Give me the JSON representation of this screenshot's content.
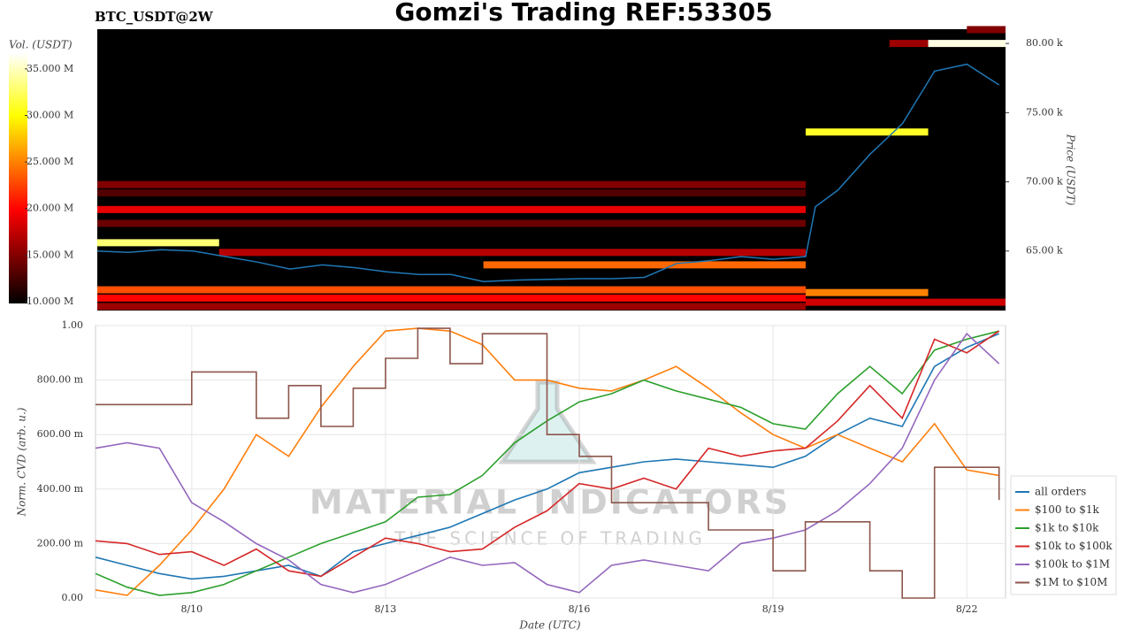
{
  "chart_data": [
    {
      "type": "heatmap",
      "title": "Gomzi's Trading REF:53305",
      "subtitle": "BTC_USDT@2W",
      "ylabel": "Price (USDT)",
      "colorbar_label": "Vol. (USDT)",
      "colormap": "hot",
      "xlim": [
        8.51,
        22.6
      ],
      "ylim": [
        60700,
        81030
      ],
      "yticks": [
        {
          "value": 65000,
          "label": "65.00 k"
        },
        {
          "value": 70000,
          "label": "70.00 k"
        },
        {
          "value": 75000,
          "label": "75.00 k"
        },
        {
          "value": 80000,
          "label": "80.00 k"
        }
      ],
      "clim": [
        9800000,
        36700000
      ],
      "cticks": [
        {
          "value": 10000000,
          "label": "10.000 M"
        },
        {
          "value": 15000000,
          "label": "15.000 M"
        },
        {
          "value": 20000000,
          "label": "20.000 M"
        },
        {
          "value": 25000000,
          "label": "25.000 M"
        },
        {
          "value": 30000000,
          "label": "30.000 M"
        },
        {
          "value": 35000000,
          "label": "35.000 M"
        }
      ],
      "bands": [
        {
          "x0": 8.51,
          "x1": 19.5,
          "price": 69800,
          "volume": 15000000
        },
        {
          "x0": 8.51,
          "x1": 19.5,
          "price": 69200,
          "volume": 13000000
        },
        {
          "x0": 8.51,
          "x1": 19.5,
          "price": 68000,
          "volume": 19000000
        },
        {
          "x0": 8.51,
          "x1": 19.5,
          "price": 67000,
          "volume": 14000000
        },
        {
          "x0": 8.51,
          "x1": 10.4,
          "price": 65600,
          "volume": 33000000
        },
        {
          "x0": 10.4,
          "x1": 19.5,
          "price": 64900,
          "volume": 17000000
        },
        {
          "x0": 14.5,
          "x1": 19.5,
          "price": 64000,
          "volume": 24000000
        },
        {
          "x0": 8.51,
          "x1": 19.5,
          "price": 62200,
          "volume": 23000000
        },
        {
          "x0": 8.51,
          "x1": 19.5,
          "price": 61600,
          "volume": 20000000
        },
        {
          "x0": 8.51,
          "x1": 19.5,
          "price": 61000,
          "volume": 16000000
        },
        {
          "x0": 19.5,
          "x1": 21.4,
          "price": 73600,
          "volume": 31000000
        },
        {
          "x0": 20.8,
          "x1": 21.4,
          "price": 80000,
          "volume": 16000000
        },
        {
          "x0": 21.4,
          "x1": 22.6,
          "price": 80000,
          "volume": 36000000
        },
        {
          "x0": 22.0,
          "x1": 22.6,
          "price": 81000,
          "volume": 15000000
        },
        {
          "x0": 19.5,
          "x1": 21.4,
          "price": 62000,
          "volume": 25000000
        },
        {
          "x0": 19.5,
          "x1": 22.6,
          "price": 61300,
          "volume": 18000000
        }
      ],
      "price_line": {
        "color": "#1f77b4",
        "x": [
          8.51,
          9,
          9.5,
          10,
          10.5,
          11,
          11.5,
          12,
          12.5,
          13,
          13.5,
          14,
          14.5,
          15,
          15.5,
          16,
          16.5,
          17,
          17.5,
          18,
          18.5,
          19,
          19.5,
          19.65,
          20,
          20.5,
          21,
          21.5,
          22,
          22.5
        ],
        "values": [
          65000,
          64900,
          65100,
          65000,
          64600,
          64200,
          63700,
          64000,
          63800,
          63500,
          63300,
          63300,
          62800,
          62900,
          62950,
          63000,
          63000,
          63100,
          64100,
          64300,
          64600,
          64400,
          64600,
          68200,
          69400,
          72000,
          74200,
          78000,
          78500,
          77000
        ]
      }
    },
    {
      "type": "line",
      "xlabel": "Date (UTC)",
      "ylabel": "Norm. CVD (arb. u.)",
      "annotations": [
        "MATERIAL INDICATORS",
        "THE SCIENCE OF TRADING"
      ],
      "grid": true,
      "legend": "right",
      "xlim": [
        8.51,
        22.6
      ],
      "xticks": [
        {
          "value": 10,
          "label": "8/10"
        },
        {
          "value": 13,
          "label": "8/13"
        },
        {
          "value": 16,
          "label": "8/16"
        },
        {
          "value": 19,
          "label": "8/19"
        },
        {
          "value": 22,
          "label": "8/22"
        }
      ],
      "ylim": [
        0,
        1
      ],
      "yticks": [
        {
          "value": 0,
          "label": "0.00"
        },
        {
          "value": 0.2,
          "label": "200.00 m"
        },
        {
          "value": 0.4,
          "label": "400.00 m"
        },
        {
          "value": 0.6,
          "label": "600.00 m"
        },
        {
          "value": 0.8,
          "label": "800.00 m"
        },
        {
          "value": 1,
          "label": "1.00"
        }
      ],
      "x": [
        8.51,
        9,
        9.5,
        10,
        10.5,
        11,
        11.5,
        12,
        12.5,
        13,
        13.5,
        14,
        14.5,
        15,
        15.5,
        16,
        16.5,
        17,
        17.5,
        18,
        18.5,
        19,
        19.5,
        20,
        20.5,
        21,
        21.5,
        22,
        22.5
      ],
      "series": [
        {
          "name": "all orders",
          "color": "#1f77b4",
          "values": [
            0.15,
            0.12,
            0.09,
            0.07,
            0.08,
            0.1,
            0.12,
            0.08,
            0.17,
            0.2,
            0.23,
            0.26,
            0.31,
            0.36,
            0.4,
            0.46,
            0.48,
            0.5,
            0.51,
            0.5,
            0.49,
            0.48,
            0.52,
            0.6,
            0.66,
            0.63,
            0.85,
            0.92,
            0.97
          ]
        },
        {
          "name": "$100 to $1k",
          "color": "#ff7f0e",
          "values": [
            0.03,
            0.01,
            0.12,
            0.25,
            0.4,
            0.6,
            0.52,
            0.7,
            0.85,
            0.98,
            0.99,
            0.98,
            0.93,
            0.8,
            0.8,
            0.77,
            0.76,
            0.8,
            0.85,
            0.77,
            0.68,
            0.6,
            0.55,
            0.6,
            0.55,
            0.5,
            0.64,
            0.47,
            0.45
          ]
        },
        {
          "name": "$1k to $10k",
          "color": "#2ca02c",
          "values": [
            0.09,
            0.04,
            0.01,
            0.02,
            0.05,
            0.1,
            0.15,
            0.2,
            0.24,
            0.28,
            0.37,
            0.38,
            0.45,
            0.57,
            0.65,
            0.72,
            0.75,
            0.8,
            0.76,
            0.73,
            0.7,
            0.64,
            0.62,
            0.75,
            0.85,
            0.75,
            0.91,
            0.95,
            0.98
          ]
        },
        {
          "name": "$10k to $100k",
          "color": "#d62728",
          "values": [
            0.21,
            0.2,
            0.16,
            0.17,
            0.12,
            0.18,
            0.1,
            0.08,
            0.15,
            0.22,
            0.2,
            0.17,
            0.18,
            0.26,
            0.32,
            0.42,
            0.4,
            0.44,
            0.4,
            0.55,
            0.52,
            0.54,
            0.55,
            0.65,
            0.78,
            0.66,
            0.95,
            0.9,
            0.98
          ]
        },
        {
          "name": "$100k to $1M",
          "color": "#9467bd",
          "values": [
            0.55,
            0.57,
            0.55,
            0.35,
            0.28,
            0.2,
            0.14,
            0.05,
            0.02,
            0.05,
            0.1,
            0.15,
            0.12,
            0.13,
            0.05,
            0.02,
            0.12,
            0.14,
            0.12,
            0.1,
            0.2,
            0.22,
            0.25,
            0.32,
            0.42,
            0.55,
            0.8,
            0.97,
            0.86
          ]
        },
        {
          "name": "$1M to $10M",
          "color": "#8c564b",
          "drawstyle": "steps",
          "values": [
            0.71,
            0.71,
            0.71,
            0.83,
            0.83,
            0.66,
            0.78,
            0.63,
            0.77,
            0.88,
            0.99,
            0.86,
            0.97,
            0.97,
            0.6,
            0.52,
            0.35,
            0.35,
            0.35,
            0.25,
            0.25,
            0.1,
            0.28,
            0.28,
            0.1,
            0,
            0.48,
            0.48,
            0.36
          ]
        }
      ]
    }
  ]
}
